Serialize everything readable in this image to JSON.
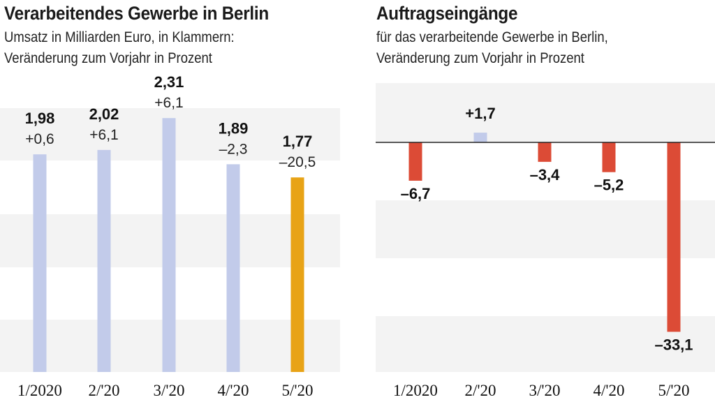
{
  "chart_data": [
    {
      "type": "bar",
      "title": "Verarbeitendes Gewerbe in Berlin",
      "subtitle_line1": "Umsatz in Milliarden Euro, in Klammern:",
      "subtitle_line2": "Veränderung zum Vorjahr in Prozent",
      "categories": [
        "1/2020",
        "2/'20",
        "3/'20",
        "4/'20",
        "5/'20"
      ],
      "values": [
        1.98,
        2.02,
        2.31,
        1.89,
        1.77
      ],
      "value_labels": [
        "1,98",
        "2,02",
        "2,31",
        "1,89",
        "1,77"
      ],
      "change_labels": [
        "+0,6",
        "+6,1",
        "+6,1",
        "–2,3",
        "–20,5"
      ],
      "ylim": [
        0,
        2.4
      ],
      "colors": {
        "default": "#c2cbea",
        "highlight": "#e8a316"
      },
      "highlight_index": 4
    },
    {
      "type": "bar",
      "title": "Auftragseingänge",
      "subtitle_line1": "für das verarbeitende Gewerbe in Berlin,",
      "subtitle_line2": "Veränderung zum Vorjahr in Prozent",
      "categories": [
        "1/2020",
        "2/'20",
        "3/'20",
        "4/'20",
        "5/'20"
      ],
      "values": [
        -6.7,
        1.7,
        -3.4,
        -5.2,
        -33.1
      ],
      "value_labels": [
        "–6,7",
        "+1,7",
        "–3,4",
        "–5,2",
        "–33,1"
      ],
      "ylim": [
        -40,
        10
      ],
      "colors": {
        "positive": "#c2cbea",
        "negative": "#dc4b36"
      }
    }
  ],
  "colors": {
    "band": "#f3f3f3",
    "axis": "#222222"
  }
}
